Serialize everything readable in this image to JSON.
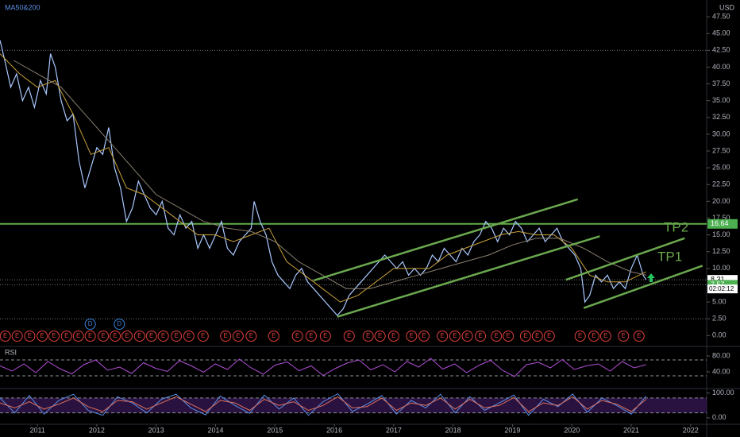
{
  "chart_data": {
    "type": "line",
    "title": "MA50&200",
    "currency": "USD",
    "xlim": [
      2010.37,
      2022.27
    ],
    "xticks": [
      2011,
      2012,
      2013,
      2014,
      2015,
      2016,
      2017,
      2018,
      2019,
      2020,
      2021,
      2022
    ],
    "ylim": [
      -1.5,
      50
    ],
    "yticks": [
      {
        "value": 0,
        "label": "0.00"
      },
      {
        "value": 2.5,
        "label": "2.50"
      },
      {
        "value": 5,
        "label": "5.00"
      },
      {
        "value": 7.5,
        "label": "7.50"
      },
      {
        "value": 10,
        "label": "10.00"
      },
      {
        "value": 12.5,
        "label": "12.50"
      },
      {
        "value": 15,
        "label": "15.00"
      },
      {
        "value": 17.5,
        "label": "17.50"
      },
      {
        "value": 20,
        "label": "20.00"
      },
      {
        "value": 22.5,
        "label": "22.50"
      },
      {
        "value": 25,
        "label": "25.00"
      },
      {
        "value": 27.5,
        "label": "27.50"
      },
      {
        "value": 30,
        "label": "30.00"
      },
      {
        "value": 32.5,
        "label": "32.50"
      },
      {
        "value": 35,
        "label": "35.00"
      },
      {
        "value": 37.5,
        "label": "37.50"
      },
      {
        "value": 40,
        "label": "40.00"
      },
      {
        "value": 42.5,
        "label": "42.50"
      },
      {
        "value": 45,
        "label": "45.00"
      },
      {
        "value": 47.5,
        "label": "47.50"
      }
    ],
    "series": [
      {
        "color": "#a9c8ff",
        "width": 1.2,
        "x": [
          2010.37,
          2010.45,
          2010.55,
          2010.65,
          2010.75,
          2010.85,
          2010.95,
          2011.05,
          2011.15,
          2011.22,
          2011.3,
          2011.4,
          2011.5,
          2011.6,
          2011.7,
          2011.8,
          2011.9,
          2012.0,
          2012.1,
          2012.2,
          2012.3,
          2012.4,
          2012.5,
          2012.6,
          2012.7,
          2012.8,
          2012.9,
          2013.0,
          2013.1,
          2013.2,
          2013.3,
          2013.4,
          2013.5,
          2013.6,
          2013.7,
          2013.8,
          2013.9,
          2014.0,
          2014.1,
          2014.2,
          2014.3,
          2014.4,
          2014.5,
          2014.6,
          2014.65,
          2014.75,
          2014.85,
          2014.95,
          2015.05,
          2015.15,
          2015.25,
          2015.35,
          2015.45,
          2015.55,
          2015.65,
          2015.75,
          2015.85,
          2015.95,
          2016.05,
          2016.15,
          2016.25,
          2016.35,
          2016.45,
          2016.55,
          2016.65,
          2016.75,
          2016.85,
          2016.95,
          2017.05,
          2017.15,
          2017.25,
          2017.35,
          2017.45,
          2017.55,
          2017.65,
          2017.75,
          2017.85,
          2017.95,
          2018.05,
          2018.15,
          2018.25,
          2018.35,
          2018.45,
          2018.55,
          2018.65,
          2018.75,
          2018.85,
          2018.95,
          2019.05,
          2019.15,
          2019.25,
          2019.35,
          2019.45,
          2019.55,
          2019.65,
          2019.75,
          2019.85,
          2019.95,
          2020.05,
          2020.15,
          2020.22,
          2020.3,
          2020.4,
          2020.5,
          2020.6,
          2020.7,
          2020.8,
          2020.9,
          2021.0,
          2021.1,
          2021.2,
          2021.25
        ],
        "values": [
          44,
          41,
          37,
          39,
          35,
          37,
          34,
          38,
          36,
          42,
          40,
          35,
          32,
          33,
          26,
          22,
          25,
          28,
          27,
          31,
          25,
          22,
          17,
          19,
          23,
          21,
          19,
          18,
          20,
          16,
          15,
          18,
          16,
          17,
          13,
          15,
          13,
          15,
          17,
          13,
          12,
          14,
          15,
          16,
          20,
          17,
          15,
          11,
          9,
          8,
          7,
          9,
          10,
          8,
          7,
          6,
          5,
          4,
          3,
          4,
          6,
          7,
          8,
          9,
          10,
          11,
          12,
          11,
          10,
          11,
          9,
          10,
          9,
          10,
          12,
          11,
          13,
          12,
          11,
          13,
          12,
          14,
          15,
          17,
          16,
          14,
          16,
          15,
          17,
          16,
          14,
          15,
          16,
          14,
          15,
          16,
          14,
          13,
          12,
          10,
          5,
          6,
          9,
          8,
          9,
          7,
          8,
          7,
          10,
          12,
          9,
          8.31
        ]
      },
      {
        "color": "#c9a13a",
        "width": 1,
        "x": [
          2010.37,
          2010.7,
          2011.0,
          2011.3,
          2011.6,
          2011.9,
          2012.2,
          2012.5,
          2012.8,
          2013.1,
          2013.4,
          2013.7,
          2014.0,
          2014.3,
          2014.6,
          2014.9,
          2015.2,
          2015.5,
          2015.8,
          2016.1,
          2016.4,
          2016.7,
          2017.0,
          2017.3,
          2017.6,
          2017.9,
          2018.2,
          2018.5,
          2018.8,
          2019.1,
          2019.4,
          2019.7,
          2020.0,
          2020.3,
          2020.6,
          2020.9,
          2021.25
        ],
        "values": [
          42,
          39,
          37,
          38,
          33,
          27,
          28,
          22,
          21,
          19,
          17,
          15,
          15,
          14,
          15,
          16,
          11,
          9,
          7,
          5,
          6,
          8,
          10,
          10,
          10,
          12,
          13,
          14,
          15,
          15.5,
          15,
          15,
          13,
          9,
          8,
          8,
          9.5
        ]
      },
      {
        "color": "#8a7f6e",
        "width": 1,
        "x": [
          2010.6,
          2011.0,
          2011.4,
          2011.8,
          2012.2,
          2012.6,
          2013.0,
          2013.4,
          2013.8,
          2014.2,
          2014.6,
          2015.0,
          2015.4,
          2015.8,
          2016.2,
          2016.6,
          2017.0,
          2017.4,
          2017.8,
          2018.2,
          2018.6,
          2019.0,
          2019.4,
          2019.8,
          2020.2,
          2020.6,
          2021.0,
          2021.25
        ],
        "values": [
          41,
          39,
          37,
          33,
          29,
          25,
          21,
          19,
          17,
          16,
          15.5,
          14,
          11,
          9,
          7,
          7,
          8,
          9,
          10,
          11,
          12,
          13.5,
          14.5,
          14.5,
          13,
          11,
          9.5,
          9
        ]
      }
    ],
    "dotted_levels": [
      42.5,
      2.5,
      8.31,
      7.57
    ],
    "resistance": {
      "value": 16.64,
      "color": "#5fae4a"
    },
    "trendline_color": "#6aa84f",
    "trendlines": [
      {
        "x": [
          2015.65,
          2020.1
        ],
        "y": [
          8.2,
          20.3
        ]
      },
      {
        "x": [
          2016.05,
          2020.47
        ],
        "y": [
          2.8,
          14.8
        ]
      },
      {
        "x": [
          2019.9,
          2021.9
        ],
        "y": [
          8.3,
          14.5
        ]
      },
      {
        "x": [
          2020.2,
          2022.2
        ],
        "y": [
          4.1,
          10.4
        ]
      }
    ],
    "annotations": [
      "TP2",
      "TP1"
    ],
    "price_labels": [
      {
        "value": 16.64,
        "color": "#4caf50"
      },
      {
        "value": 8.31,
        "color": "#ffffff"
      },
      {
        "value": 7.57,
        "color": "#4caf50"
      }
    ],
    "countdown": "02:02:12",
    "earnings": {
      "label": "E",
      "color": "#e0413c",
      "x": [
        2010.46,
        2010.66,
        2010.87,
        2011.08,
        2011.28,
        2011.49,
        2011.69,
        2011.89,
        2012.11,
        2012.31,
        2012.51,
        2012.72,
        2012.92,
        2013.12,
        2013.34,
        2013.55,
        2013.79,
        2014.17,
        2014.38,
        2014.6,
        2014.98,
        2015.38,
        2015.61,
        2015.85,
        2016.25,
        2016.57,
        2016.77,
        2017.0,
        2017.3,
        2017.51,
        2017.82,
        2018.03,
        2018.24,
        2018.46,
        2018.73,
        2018.93,
        2019.22,
        2019.42,
        2019.62,
        2020.14,
        2020.37,
        2020.57,
        2020.87,
        2021.13
      ]
    },
    "dividends": {
      "label": "D",
      "color": "#3d7fd6",
      "x": [
        2011.89,
        2012.38
      ]
    },
    "panels": [
      {
        "label": "RSI",
        "xrange": [
          2010.37,
          2021.25
        ],
        "ylim": [
          0,
          100
        ],
        "yticks": [
          {
            "value": 80,
            "label": "80.00"
          },
          {
            "value": 40,
            "label": "40.00"
          }
        ],
        "bands": [
          70,
          30
        ],
        "series": [
          {
            "color": "#b14fd6",
            "values": [
              55,
              42,
              60,
              38,
              66,
              48,
              35,
              58,
              70,
              44,
              52,
              36,
              63,
              49,
              41,
              68,
              55,
              39,
              60,
              46,
              72,
              50,
              34,
              57,
              65,
              43,
              55,
              31,
              48,
              62,
              70,
              45,
              58,
              40,
              66,
              52,
              74,
              47,
              60,
              38,
              56,
              69,
              44,
              28,
              58,
              64,
              50,
              71,
              46,
              55,
              60,
              42,
              66,
              50,
              58
            ]
          }
        ]
      },
      {
        "xrange": [
          2010.37,
          2021.25
        ],
        "ylim": [
          -23,
          115
        ],
        "yticks": [
          {
            "value": 100,
            "label": "100.00"
          },
          {
            "value": 0,
            "label": "0.00"
          }
        ],
        "bands": [
          80,
          20
        ],
        "series": [
          {
            "color": "#5b8fe6",
            "values": [
              80,
              20,
              90,
              15,
              70,
              95,
              30,
              10,
              85,
              60,
              20,
              75,
              95,
              40,
              12,
              88,
              50,
              18,
              92,
              35,
              80,
              10,
              65,
              97,
              25,
              55,
              90,
              15,
              70,
              40,
              95,
              20,
              85,
              30,
              60,
              92,
              10,
              75,
              45,
              96,
              22,
              80,
              50,
              15,
              88
            ]
          },
          {
            "color": "#e0705c",
            "values": [
              60,
              40,
              65,
              35,
              55,
              80,
              45,
              25,
              70,
              65,
              35,
              60,
              85,
              55,
              25,
              70,
              60,
              30,
              75,
              50,
              65,
              30,
              50,
              85,
              40,
              45,
              80,
              30,
              60,
              50,
              80,
              35,
              75,
              40,
              50,
              82,
              25,
              60,
              50,
              85,
              35,
              70,
              55,
              25,
              75
            ]
          }
        ]
      }
    ]
  }
}
